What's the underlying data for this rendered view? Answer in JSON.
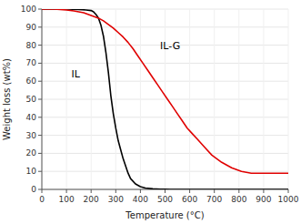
{
  "chart_data": {
    "type": "line",
    "title": "",
    "xlabel": "Temperature (°C)",
    "ylabel": "Weight loss (wt%)",
    "xlim": [
      0,
      1000
    ],
    "ylim": [
      0,
      100
    ],
    "xticks": [
      0,
      100,
      200,
      300,
      400,
      500,
      600,
      700,
      800,
      900,
      1000
    ],
    "yticks": [
      0,
      10,
      20,
      30,
      40,
      50,
      60,
      70,
      80,
      90,
      100
    ],
    "annotations": [
      {
        "text": "IL",
        "x": 120,
        "y": 62
      },
      {
        "text": "IL-G",
        "x": 480,
        "y": 78
      }
    ],
    "series": [
      {
        "color": "#000000",
        "x": [
          0,
          100,
          150,
          180,
          200,
          210,
          220,
          230,
          240,
          250,
          260,
          270,
          280,
          290,
          300,
          310,
          320,
          330,
          340,
          350,
          360,
          380,
          400,
          420,
          450,
          480,
          500,
          520,
          540,
          560,
          1000
        ],
        "values": [
          100,
          100,
          99.8,
          99.5,
          99.2,
          98.5,
          97,
          95,
          91,
          85,
          76,
          65,
          52,
          42,
          34,
          27,
          22,
          17,
          13,
          9,
          6,
          3,
          1.5,
          0.8,
          0.3,
          0.1,
          0.05,
          0.02,
          0.01,
          0.0,
          0.0
        ]
      },
      {
        "color": "#e00000",
        "x": [
          0,
          50,
          100,
          130,
          150,
          170,
          190,
          210,
          230,
          250,
          270,
          290,
          310,
          330,
          350,
          370,
          390,
          410,
          430,
          450,
          470,
          490,
          510,
          530,
          550,
          570,
          590,
          610,
          630,
          650,
          670,
          690,
          710,
          730,
          750,
          770,
          790,
          810,
          830,
          850,
          900,
          950,
          1000
        ],
        "values": [
          100,
          100,
          99.5,
          99,
          98.5,
          98,
          97,
          96,
          95,
          93.5,
          91.5,
          89.5,
          87,
          84.5,
          81.5,
          78,
          74,
          70,
          66,
          62,
          58,
          54,
          50,
          46,
          42,
          38,
          34,
          31,
          28,
          25,
          22,
          19,
          17,
          15,
          13.5,
          12,
          11,
          10,
          9.5,
          9.0,
          9.0,
          9.0,
          9.0
        ]
      }
    ]
  }
}
